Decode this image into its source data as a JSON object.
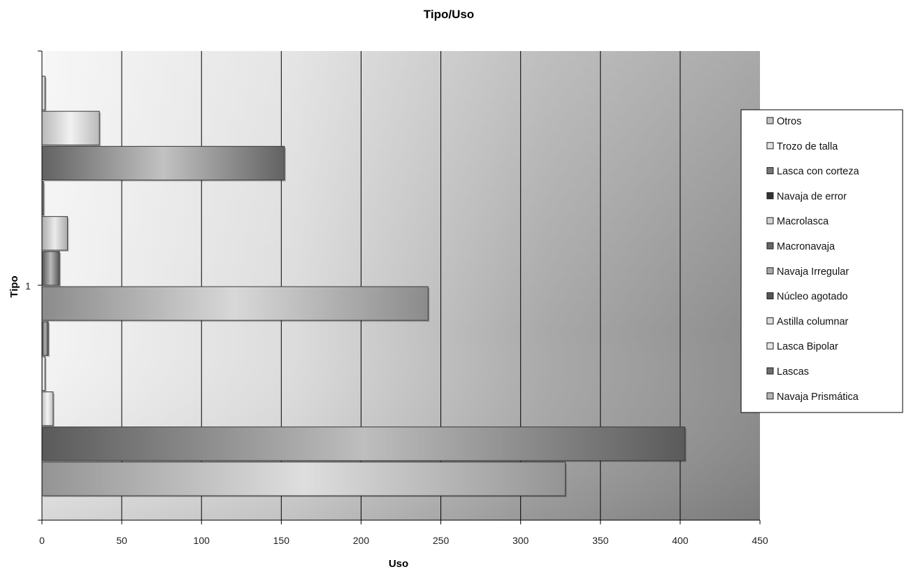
{
  "chart_data": {
    "type": "bar",
    "orientation": "horizontal",
    "title": "Tipo/Uso",
    "xlabel": "Uso",
    "ylabel": "Tipo",
    "categories": [
      "1"
    ],
    "xlim": [
      0,
      450
    ],
    "xticks": [
      0,
      50,
      100,
      150,
      200,
      250,
      300,
      350,
      400,
      450
    ],
    "grid": true,
    "legend_position": "right",
    "series": [
      {
        "name": "Navaja Prismática",
        "values": [
          328
        ],
        "color": "#b5b5b5"
      },
      {
        "name": "Lascas",
        "values": [
          403
        ],
        "color": "#6e6e6e"
      },
      {
        "name": "Lasca Bipolar",
        "values": [
          7
        ],
        "color": "#e6e6e6"
      },
      {
        "name": "Astilla columnar",
        "values": [
          2
        ],
        "color": "#dcdcdc"
      },
      {
        "name": "Núcleo agotado",
        "values": [
          4
        ],
        "color": "#555555"
      },
      {
        "name": "Navaja Irregular",
        "values": [
          242
        ],
        "color": "#a9a9a9"
      },
      {
        "name": "Macronavaja",
        "values": [
          11
        ],
        "color": "#666666"
      },
      {
        "name": "Macrolasca",
        "values": [
          16
        ],
        "color": "#d2d2d2"
      },
      {
        "name": "Navaja de error",
        "values": [
          1
        ],
        "color": "#333333"
      },
      {
        "name": "Lasca con corteza",
        "values": [
          152
        ],
        "color": "#777777"
      },
      {
        "name": "Trozo de talla",
        "values": [
          36
        ],
        "color": "#e2e2e2"
      },
      {
        "name": "Otros",
        "values": [
          2
        ],
        "color": "#c4c4c4"
      }
    ]
  }
}
